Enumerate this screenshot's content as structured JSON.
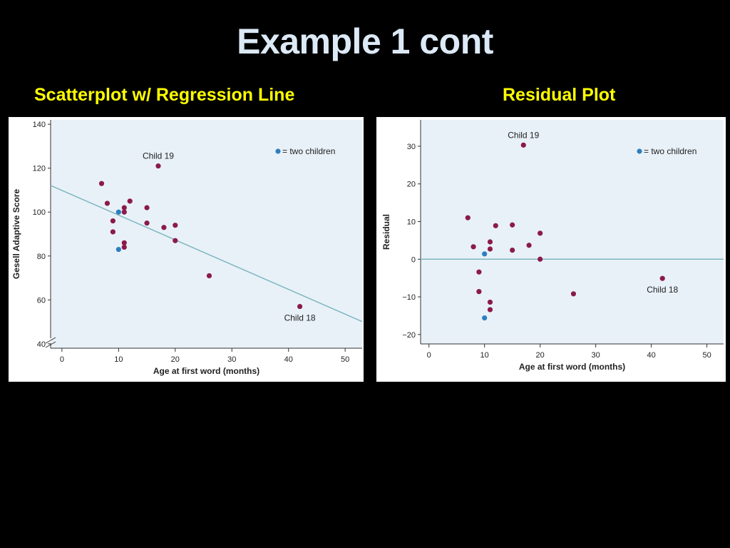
{
  "slide": {
    "title": "Example 1 cont",
    "left_heading": "Scatterplot w/ Regression Line",
    "right_heading": "Residual Plot"
  },
  "colors": {
    "background": "#000000",
    "title": "#dce9f6",
    "heading": "#ffff00",
    "plot_area": "#e8f1f8",
    "point": "#8b1a4a",
    "point_double": "#2d7fbf",
    "fit_line": "#7fb6bf"
  },
  "chart_data": [
    {
      "type": "scatter",
      "title": "",
      "xlabel": "Age at first word (months)",
      "ylabel": "Gesell Adaptive Score",
      "xlim": [
        -2,
        53
      ],
      "ylim": [
        38,
        142
      ],
      "xticks": [
        0,
        10,
        20,
        30,
        40,
        50
      ],
      "yticks": [
        40,
        60,
        80,
        100,
        120,
        140
      ],
      "grid": false,
      "axis_break_y": true,
      "legend": {
        "label": "= two children",
        "position": "top-right"
      },
      "series": [
        {
          "points": [
            {
              "x": 7,
              "y": 113
            },
            {
              "x": 8,
              "y": 104
            },
            {
              "x": 9,
              "y": 96
            },
            {
              "x": 9,
              "y": 91
            },
            {
              "x": 11,
              "y": 102
            },
            {
              "x": 11,
              "y": 100
            },
            {
              "x": 11,
              "y": 86
            },
            {
              "x": 11,
              "y": 84
            },
            {
              "x": 12,
              "y": 105
            },
            {
              "x": 15,
              "y": 102
            },
            {
              "x": 15,
              "y": 95
            },
            {
              "x": 17,
              "y": 121
            },
            {
              "x": 18,
              "y": 93
            },
            {
              "x": 20,
              "y": 94
            },
            {
              "x": 20,
              "y": 87
            },
            {
              "x": 26,
              "y": 71
            },
            {
              "x": 42,
              "y": 57
            }
          ]
        },
        {
          "double": true,
          "points": [
            {
              "x": 10,
              "y": 100
            },
            {
              "x": 10,
              "y": 83
            }
          ]
        }
      ],
      "regression_line": {
        "intercept": 109.87,
        "slope": -1.127,
        "x_range": [
          -2,
          53
        ]
      },
      "annotations": [
        {
          "text": "Child 19",
          "x": 17,
          "y": 121
        },
        {
          "text": "Child 18",
          "x": 42,
          "y": 57
        }
      ]
    },
    {
      "type": "scatter",
      "title": "",
      "xlabel": "Age at first word (months)",
      "ylabel": "Residual",
      "xlim": [
        -1.5,
        53
      ],
      "ylim": [
        -22.5,
        37
      ],
      "xticks": [
        0,
        10,
        20,
        30,
        40,
        50
      ],
      "yticks": [
        -20,
        -10,
        0,
        10,
        20,
        30
      ],
      "grid": false,
      "legend": {
        "label": "= two children",
        "position": "top-right"
      },
      "series": [
        {
          "points": [
            {
              "x": 7,
              "y": 11
            },
            {
              "x": 8,
              "y": 3.3
            },
            {
              "x": 9,
              "y": -3.4
            },
            {
              "x": 9,
              "y": -8.6
            },
            {
              "x": 11,
              "y": 4.6
            },
            {
              "x": 11,
              "y": 2.7
            },
            {
              "x": 11,
              "y": -11.4
            },
            {
              "x": 11,
              "y": -13.4
            },
            {
              "x": 12,
              "y": 8.9
            },
            {
              "x": 15,
              "y": 9.1
            },
            {
              "x": 15,
              "y": 2.4
            },
            {
              "x": 17,
              "y": 30.3
            },
            {
              "x": 18,
              "y": 3.7
            },
            {
              "x": 20,
              "y": 6.9
            },
            {
              "x": 20,
              "y": 0
            },
            {
              "x": 26,
              "y": -9.2
            },
            {
              "x": 42,
              "y": -5.1
            }
          ]
        },
        {
          "double": true,
          "points": [
            {
              "x": 10,
              "y": 1.4
            },
            {
              "x": 10,
              "y": -15.6
            }
          ]
        }
      ],
      "zero_line": 0,
      "annotations": [
        {
          "text": "Child 19",
          "x": 17,
          "y": 30.3
        },
        {
          "text": "Child 18",
          "x": 42,
          "y": -5.1
        }
      ]
    }
  ]
}
